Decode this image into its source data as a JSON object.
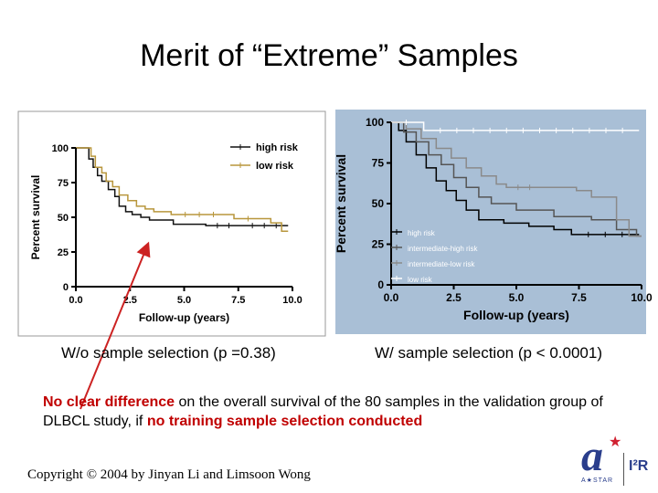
{
  "slide": {
    "title": "Merit of “Extreme” Samples",
    "caption_left": "W/o sample selection (p =0.38)",
    "caption_right": "W/ sample selection (p < 0.0001)",
    "note_bold": "No clear difference",
    "note_mid": " on the overall survival of the 80 samples in the validation group of DLBCL study, if ",
    "note_bold2": "no training sample selection conducted",
    "copyright": "Copyright © 2004 by Jinyan Li and Limsoon Wong",
    "logo_text": "A★STAR",
    "logo_i2r": "I²R"
  },
  "colors": {
    "arrow": "#cc2222",
    "left_high": "#111111",
    "left_low": "#b8963c",
    "right_bg": "#a9bfd6",
    "right_high": "#000000",
    "right_ih": "#555555",
    "right_il": "#8a8a8a",
    "right_low": "#ffffff"
  },
  "chart_data": [
    {
      "type": "line",
      "title": "",
      "xlabel": "Follow-up (years)",
      "ylabel": "Percent survival",
      "xlim": [
        0,
        10
      ],
      "ylim": [
        0,
        100
      ],
      "xticks": [
        "0.0",
        "2.5",
        "5.0",
        "7.5",
        "10.0"
      ],
      "yticks": [
        "0",
        "25",
        "50",
        "75",
        "100"
      ],
      "legend": [
        "high risk",
        "low risk"
      ],
      "series": [
        {
          "name": "high risk",
          "points": [
            [
              0,
              100
            ],
            [
              0.5,
              100
            ],
            [
              0.6,
              92
            ],
            [
              0.8,
              86
            ],
            [
              1.0,
              80
            ],
            [
              1.2,
              76
            ],
            [
              1.5,
              70
            ],
            [
              1.8,
              65
            ],
            [
              2.0,
              58
            ],
            [
              2.3,
              54
            ],
            [
              2.6,
              52
            ],
            [
              3.0,
              50
            ],
            [
              3.4,
              48
            ],
            [
              4.5,
              45
            ],
            [
              6.0,
              44
            ],
            [
              7.6,
              44
            ],
            [
              9.8,
              44
            ]
          ]
        },
        {
          "name": "low risk",
          "points": [
            [
              0,
              100
            ],
            [
              0.6,
              100
            ],
            [
              0.7,
              94
            ],
            [
              0.9,
              86
            ],
            [
              1.2,
              82
            ],
            [
              1.4,
              76
            ],
            [
              1.7,
              72
            ],
            [
              2.0,
              66
            ],
            [
              2.4,
              62
            ],
            [
              2.8,
              58
            ],
            [
              3.2,
              56
            ],
            [
              3.6,
              54
            ],
            [
              4.4,
              52
            ],
            [
              7.0,
              52
            ],
            [
              7.3,
              49
            ],
            [
              8.6,
              49
            ],
            [
              9.0,
              46
            ],
            [
              9.5,
              40
            ],
            [
              9.8,
              40
            ]
          ]
        }
      ]
    },
    {
      "type": "line",
      "title": "",
      "xlabel": "Follow-up (years)",
      "ylabel": "Percent survival",
      "xlim": [
        0,
        10
      ],
      "ylim": [
        0,
        100
      ],
      "xticks": [
        "0.0",
        "2.5",
        "5.0",
        "7.5",
        "10.0"
      ],
      "yticks": [
        "0",
        "25",
        "50",
        "75",
        "100"
      ],
      "legend": [
        "high risk",
        "intermediate-high risk",
        "intermediate-low risk",
        "low risk"
      ],
      "series": [
        {
          "name": "high risk",
          "points": [
            [
              0,
              100
            ],
            [
              0.3,
              95
            ],
            [
              0.6,
              88
            ],
            [
              1.0,
              80
            ],
            [
              1.4,
              72
            ],
            [
              1.8,
              64
            ],
            [
              2.2,
              58
            ],
            [
              2.6,
              52
            ],
            [
              3.0,
              46
            ],
            [
              3.5,
              40
            ],
            [
              4.5,
              38
            ],
            [
              5.5,
              36
            ],
            [
              6.5,
              34
            ],
            [
              7.2,
              31
            ],
            [
              9.9,
              31
            ]
          ]
        },
        {
          "name": "intermediate-high risk",
          "points": [
            [
              0,
              100
            ],
            [
              0.5,
              94
            ],
            [
              1.0,
              88
            ],
            [
              1.5,
              80
            ],
            [
              2.0,
              74
            ],
            [
              2.5,
              66
            ],
            [
              3.0,
              60
            ],
            [
              3.5,
              54
            ],
            [
              4.0,
              50
            ],
            [
              5.0,
              46
            ],
            [
              6.5,
              42
            ],
            [
              8.0,
              40
            ],
            [
              9.0,
              34
            ],
            [
              9.8,
              30
            ],
            [
              10.0,
              30
            ]
          ]
        },
        {
          "name": "intermediate-low risk",
          "points": [
            [
              0,
              100
            ],
            [
              0.6,
              96
            ],
            [
              1.2,
              90
            ],
            [
              1.8,
              84
            ],
            [
              2.4,
              78
            ],
            [
              3.0,
              72
            ],
            [
              3.6,
              67
            ],
            [
              4.2,
              62
            ],
            [
              4.6,
              60
            ],
            [
              6.0,
              60
            ],
            [
              7.4,
              58
            ],
            [
              8.0,
              54
            ],
            [
              9.0,
              40
            ],
            [
              9.5,
              30
            ],
            [
              10.0,
              30
            ]
          ]
        },
        {
          "name": "low risk",
          "points": [
            [
              0,
              100
            ],
            [
              1.2,
              100
            ],
            [
              1.3,
              95
            ],
            [
              9.9,
              95
            ]
          ]
        }
      ]
    }
  ]
}
